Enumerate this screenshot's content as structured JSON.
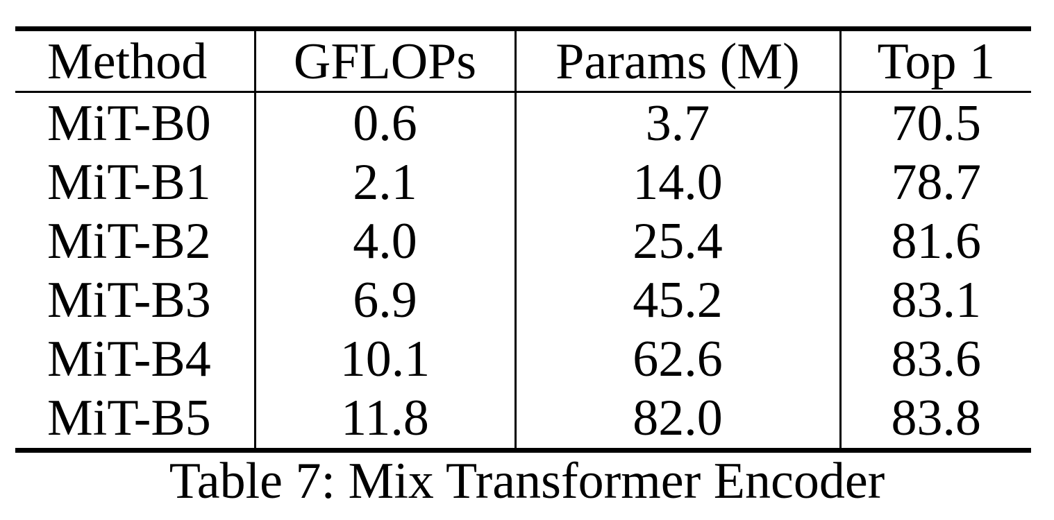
{
  "table": {
    "headers": [
      "Method",
      "GFLOPs",
      "Params (M)",
      "Top 1"
    ],
    "rows": [
      [
        "MiT-B0",
        "0.6",
        "3.7",
        "70.5"
      ],
      [
        "MiT-B1",
        "2.1",
        "14.0",
        "78.7"
      ],
      [
        "MiT-B2",
        "4.0",
        "25.4",
        "81.6"
      ],
      [
        "MiT-B3",
        "6.9",
        "45.2",
        "83.1"
      ],
      [
        "MiT-B4",
        "10.1",
        "62.6",
        "83.6"
      ],
      [
        "MiT-B5",
        "11.8",
        "82.0",
        "83.8"
      ]
    ]
  },
  "caption": "Table 7: Mix Transformer Encoder"
}
